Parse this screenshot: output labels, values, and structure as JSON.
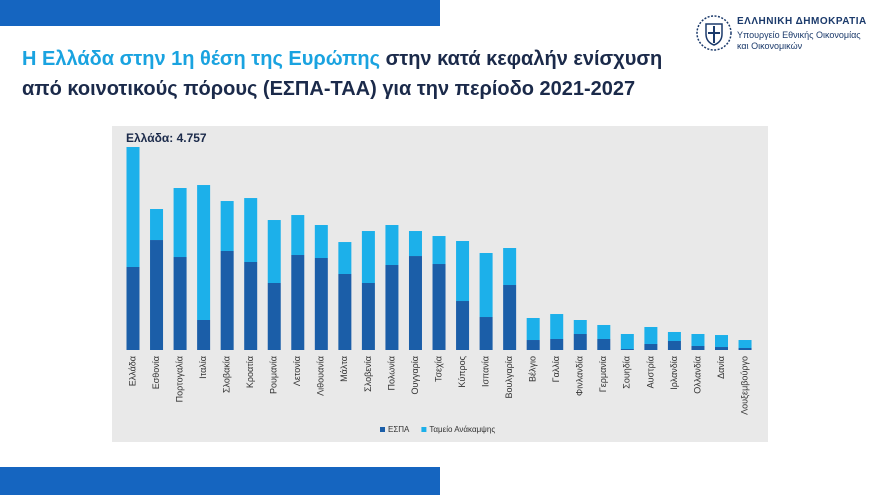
{
  "header": {
    "title_highlight": "Η Ελλάδα στην 1η θέση της Ευρώπης",
    "title_rest": "στην κατά κεφαλήν ενίσχυση",
    "title_line2": "από κοινοτικούς πόρους (ΕΣΠΑ-ΤΑΑ) για την περίοδο 2021-2027",
    "org": "ΕΛΛΗΝΙΚΗ ΔΗΜΟΚΡΑΤΙΑ",
    "ministry_line1": "Υπουργείο Εθνικής Οικονομίας",
    "ministry_line2": "και Οικονομικών"
  },
  "chart_data": {
    "type": "stacked-bar",
    "annotation": "Ελλάδα: 4.757",
    "categories": [
      "Ελλάδα",
      "Εσθονία",
      "Πορτογαλία",
      "Ιταλία",
      "Σλοβακία",
      "Κροατία",
      "Ρουμανία",
      "Λετονία",
      "Λιθουανία",
      "Μάλτα",
      "Σλοβενία",
      "Πολωνία",
      "Ουγγαρία",
      "Τσεχία",
      "Κύπρος",
      "Ισπανία",
      "Βουλγαρία",
      "Βέλγιο",
      "Γαλλία",
      "Φινλανδία",
      "Γερμανία",
      "Σουηδία",
      "Αυστρία",
      "Ιρλανδία",
      "Ολλανδία",
      "Δανία",
      "Λουξεμβούργο"
    ],
    "series": [
      {
        "name": "ΕΣΠΑ",
        "color": "#1b5ea8",
        "values": [
          1945,
          2577,
          2179,
          703,
          2320,
          2062,
          1570,
          2226,
          2156,
          1781,
          1570,
          1992,
          2202,
          2015,
          1148,
          773,
          1523,
          234,
          258,
          375,
          258,
          23,
          141,
          211,
          94,
          70,
          47
        ]
      },
      {
        "name": "Ταμείο Ανάκαμψης",
        "color": "#1cb0ea",
        "values": [
          2812,
          727,
          1617,
          3163,
          1171,
          1499,
          1476,
          937,
          773,
          749,
          1218,
          937,
          586,
          656,
          1406,
          1500,
          867,
          516,
          585,
          328,
          328,
          352,
          398,
          211,
          281,
          281,
          187
        ]
      }
    ],
    "ylim": [
      0,
      4757
    ]
  }
}
